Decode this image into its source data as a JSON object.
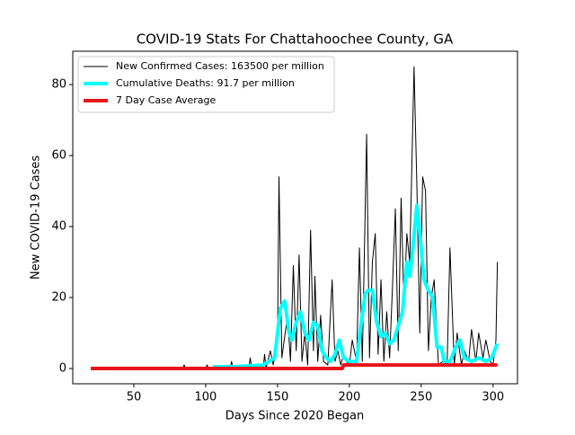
{
  "chart_data": {
    "type": "line",
    "title": "COVID-19 Stats For Chattahoochee County, GA",
    "xlabel": "Days Since 2020 Began",
    "ylabel": "New COVID-19 Cases",
    "xlim": [
      7.5,
      317
    ],
    "ylim": [
      -4.3,
      89.4
    ],
    "xticks": [
      50,
      100,
      150,
      200,
      250,
      300
    ],
    "yticks": [
      0,
      20,
      40,
      60,
      80
    ],
    "legend": "upper left",
    "series": [
      {
        "name": "New Confirmed Cases: 163500 per million",
        "color": "#000000",
        "width": 1,
        "x": [
          20,
          84,
          85,
          86,
          100,
          101,
          102,
          117,
          118,
          119,
          130,
          131,
          132,
          140,
          141,
          142,
          145,
          147,
          150,
          151,
          153,
          157,
          159,
          161,
          163,
          165,
          167,
          169,
          171,
          173,
          175,
          176,
          178,
          180,
          182,
          185,
          188,
          190,
          192,
          194,
          196,
          198,
          200,
          202,
          205,
          207,
          209,
          212,
          214,
          216,
          218,
          220,
          222,
          224,
          226,
          228,
          230,
          232,
          234,
          236,
          238,
          240,
          242,
          245,
          247,
          249,
          251,
          253,
          255,
          257,
          259,
          262,
          265,
          268,
          270,
          273,
          275,
          278,
          280,
          283,
          285,
          288,
          290,
          293,
          295,
          298,
          300,
          302,
          303
        ],
        "values": [
          0,
          0,
          1,
          0,
          0,
          1,
          0,
          0,
          2,
          0,
          0,
          3,
          0,
          0,
          4,
          0,
          5,
          1,
          8,
          54,
          3,
          15,
          2,
          29,
          5,
          32,
          2,
          10,
          1,
          39,
          5,
          26,
          2,
          15,
          2,
          1,
          25,
          2,
          5,
          1,
          4,
          2,
          1,
          8,
          2,
          34,
          2,
          66,
          3,
          30,
          38,
          4,
          25,
          2,
          16,
          3,
          23,
          45,
          5,
          48,
          18,
          38,
          30,
          85,
          51,
          10,
          54,
          50,
          5,
          20,
          25,
          1,
          2,
          1,
          34,
          1,
          10,
          1,
          5,
          2,
          11,
          2,
          10,
          3,
          8,
          2,
          1,
          8,
          30
        ]
      },
      {
        "name": "Cumulative Deaths: 91.7 per million",
        "color": "#00ffff",
        "width": 4,
        "x": [
          105,
          120,
          140,
          148,
          152,
          155,
          158,
          160,
          163,
          166,
          169,
          172,
          175,
          178,
          181,
          184,
          187,
          190,
          193,
          196,
          200,
          205,
          208,
          211,
          213,
          216,
          219,
          222,
          225,
          228,
          231,
          234,
          237,
          240,
          242,
          244,
          247,
          249,
          252,
          255,
          258,
          261,
          264,
          266,
          270,
          274,
          277,
          280,
          285,
          290,
          295,
          299,
          303
        ],
        "values": [
          0.5,
          0.5,
          1,
          3,
          17,
          19,
          10,
          8,
          13,
          16,
          10,
          8,
          13,
          12,
          5,
          3,
          2,
          4,
          8,
          3,
          2,
          2,
          12,
          21,
          22,
          22,
          13,
          9,
          10,
          7,
          8,
          12,
          16,
          30,
          26,
          33,
          46,
          38,
          25,
          22,
          20,
          6,
          6,
          2,
          2,
          6,
          8,
          3,
          2,
          3,
          2,
          3,
          7
        ]
      },
      {
        "name": "7 Day Case Average",
        "color": "#e8141a",
        "width": 4,
        "x": [
          20,
          195,
          196,
          303
        ],
        "values": [
          0,
          0,
          1,
          1
        ]
      }
    ]
  }
}
